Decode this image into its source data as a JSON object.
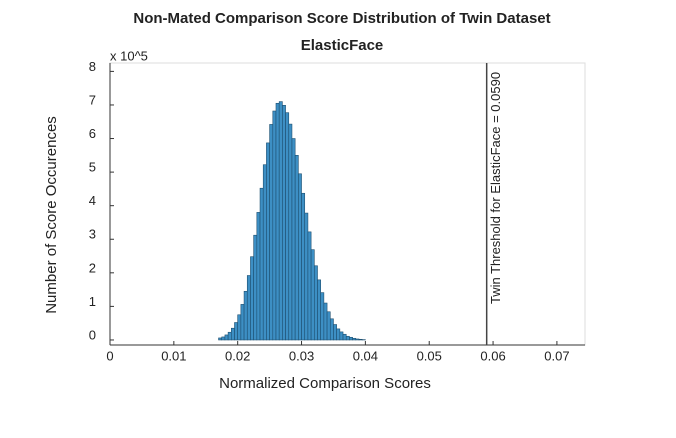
{
  "chart_data": {
    "type": "histogram",
    "title": "Non-Mated Comparison Score Distribution of Twin Dataset",
    "subtitle": "ElasticFace",
    "x_label": "Normalized Comparison Scores",
    "y_label": "Number of Score Occurences",
    "y_multiplier": "x 10^5",
    "color": "#3d8fc4",
    "bins": [
      0.017,
      0.0175,
      0.018,
      0.0185,
      0.019,
      0.0195,
      0.02,
      0.0205,
      0.021,
      0.0215,
      0.022,
      0.0225,
      0.023,
      0.0235,
      0.024,
      0.0245,
      0.025,
      0.0255,
      0.026,
      0.0265,
      0.027,
      0.0275,
      0.028,
      0.0285,
      0.029,
      0.0295,
      0.03,
      0.0305,
      0.031,
      0.0315,
      0.032,
      0.0325,
      0.033,
      0.0335,
      0.034,
      0.0345,
      0.035,
      0.0355,
      0.036,
      0.0365,
      0.037,
      0.0375,
      0.038,
      0.0385,
      0.039,
      0.0395,
      0.04
    ],
    "values": [
      0.06,
      0.09,
      0.15,
      0.23,
      0.35,
      0.52,
      0.75,
      1.06,
      1.45,
      1.92,
      2.48,
      3.12,
      3.8,
      4.52,
      5.22,
      5.87,
      6.42,
      6.82,
      7.05,
      7.1,
      6.99,
      6.77,
      6.43,
      6.0,
      5.5,
      4.95,
      4.37,
      3.78,
      3.22,
      2.69,
      2.21,
      1.79,
      1.41,
      1.1,
      0.84,
      0.63,
      0.46,
      0.33,
      0.24,
      0.17,
      0.11,
      0.08,
      0.05,
      0.03,
      0.02,
      0.01
    ],
    "xlim": [
      0,
      0.0744
    ],
    "ylim": [
      -0.15,
      8.25
    ],
    "xticks": [
      0,
      0.01,
      0.02,
      0.03,
      0.04,
      0.05,
      0.06,
      0.07
    ],
    "yticks": [
      0,
      1,
      2,
      3,
      4,
      5,
      6,
      7,
      8
    ],
    "threshold": 0.059,
    "threshold_label": "Twin Threshold for ElasticFace = 0.0590"
  }
}
